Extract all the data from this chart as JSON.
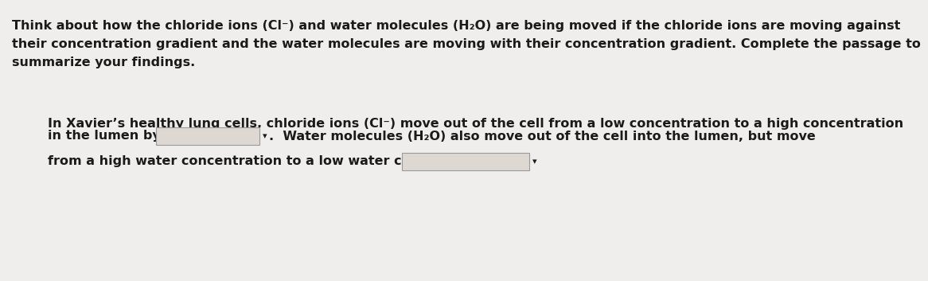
{
  "background_color": "#f0eeec",
  "text_color": "#1a1a1a",
  "paragraph1_line1": "Think about how the chloride ions (Cl⁻) and water molecules (H₂O) are being moved if the chloride ions are moving against",
  "paragraph1_line2": "their concentration gradient and the water molecules are moving with their concentration gradient. Complete the passage to",
  "paragraph1_line3": "summarize your findings.",
  "p2_line1": "In Xavier’s healthy lung cells, chloride ions (Cl⁻) move out of the cell from a low concentration to a high concentration",
  "p2_line2_before": "in the lumen by",
  "p2_line2_after": ".  Water molecules (H₂O) also move out of the cell into the lumen, but move",
  "p2_line3_before": "from a high water concentration to a low water concentration by",
  "p2_line3_after": ".",
  "box_facecolor": "#ddd8d2",
  "box_edgecolor": "#999999",
  "font_size": 11.5,
  "font_weight": "bold"
}
